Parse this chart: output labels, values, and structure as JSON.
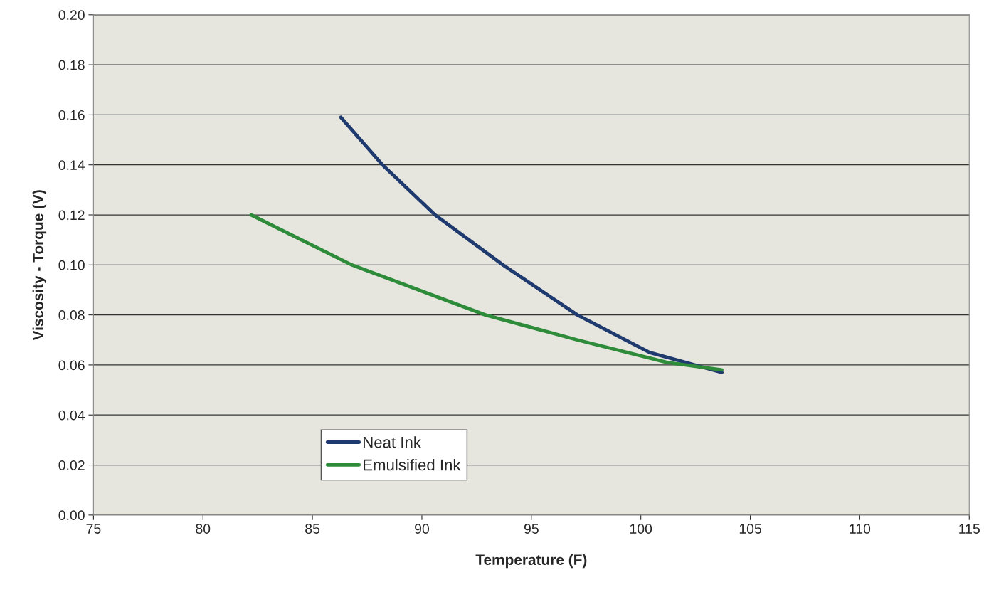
{
  "chart_data": {
    "type": "line",
    "xlabel": "Temperature (F)",
    "ylabel": "Viscosity - Torque (V)",
    "xlim": [
      75,
      115
    ],
    "xticks": [
      75,
      80,
      85,
      90,
      95,
      100,
      105,
      110,
      115
    ],
    "ylim": [
      0,
      0.2
    ],
    "yticks": [
      {
        "value": 0,
        "label": "0.00"
      },
      {
        "value": 0.02,
        "label": "0.02"
      },
      {
        "value": 0.04,
        "label": "0.04"
      },
      {
        "value": 0.06,
        "label": "0.06"
      },
      {
        "value": 0.08,
        "label": "0.08"
      },
      {
        "value": 0.1,
        "label": "0.10"
      },
      {
        "value": 0.12,
        "label": "0.12"
      },
      {
        "value": 0.14,
        "label": "0.14"
      },
      {
        "value": 0.16,
        "label": "0.16"
      },
      {
        "value": 0.18,
        "label": "0.18"
      },
      {
        "value": 0.2,
        "label": "0.20"
      }
    ],
    "grid": "y",
    "legend": "bottom left",
    "marker": "none",
    "line_style": "solid",
    "series": [
      {
        "name": "Neat Ink",
        "color": "#1f3a6e",
        "x": [
          86.3,
          88.2,
          90.6,
          93.7,
          97.1,
          100.4,
          103.7
        ],
        "values": [
          0.159,
          0.14,
          0.12,
          0.1,
          0.08,
          0.065,
          0.057
        ]
      },
      {
        "name": "Emulsified Ink",
        "color": "#2e8b3a",
        "x": [
          82.2,
          86.8,
          92.9,
          97.1,
          101.2,
          103.7
        ],
        "values": [
          0.12,
          0.1,
          0.08,
          0.07,
          0.061,
          0.058
        ]
      }
    ]
  }
}
